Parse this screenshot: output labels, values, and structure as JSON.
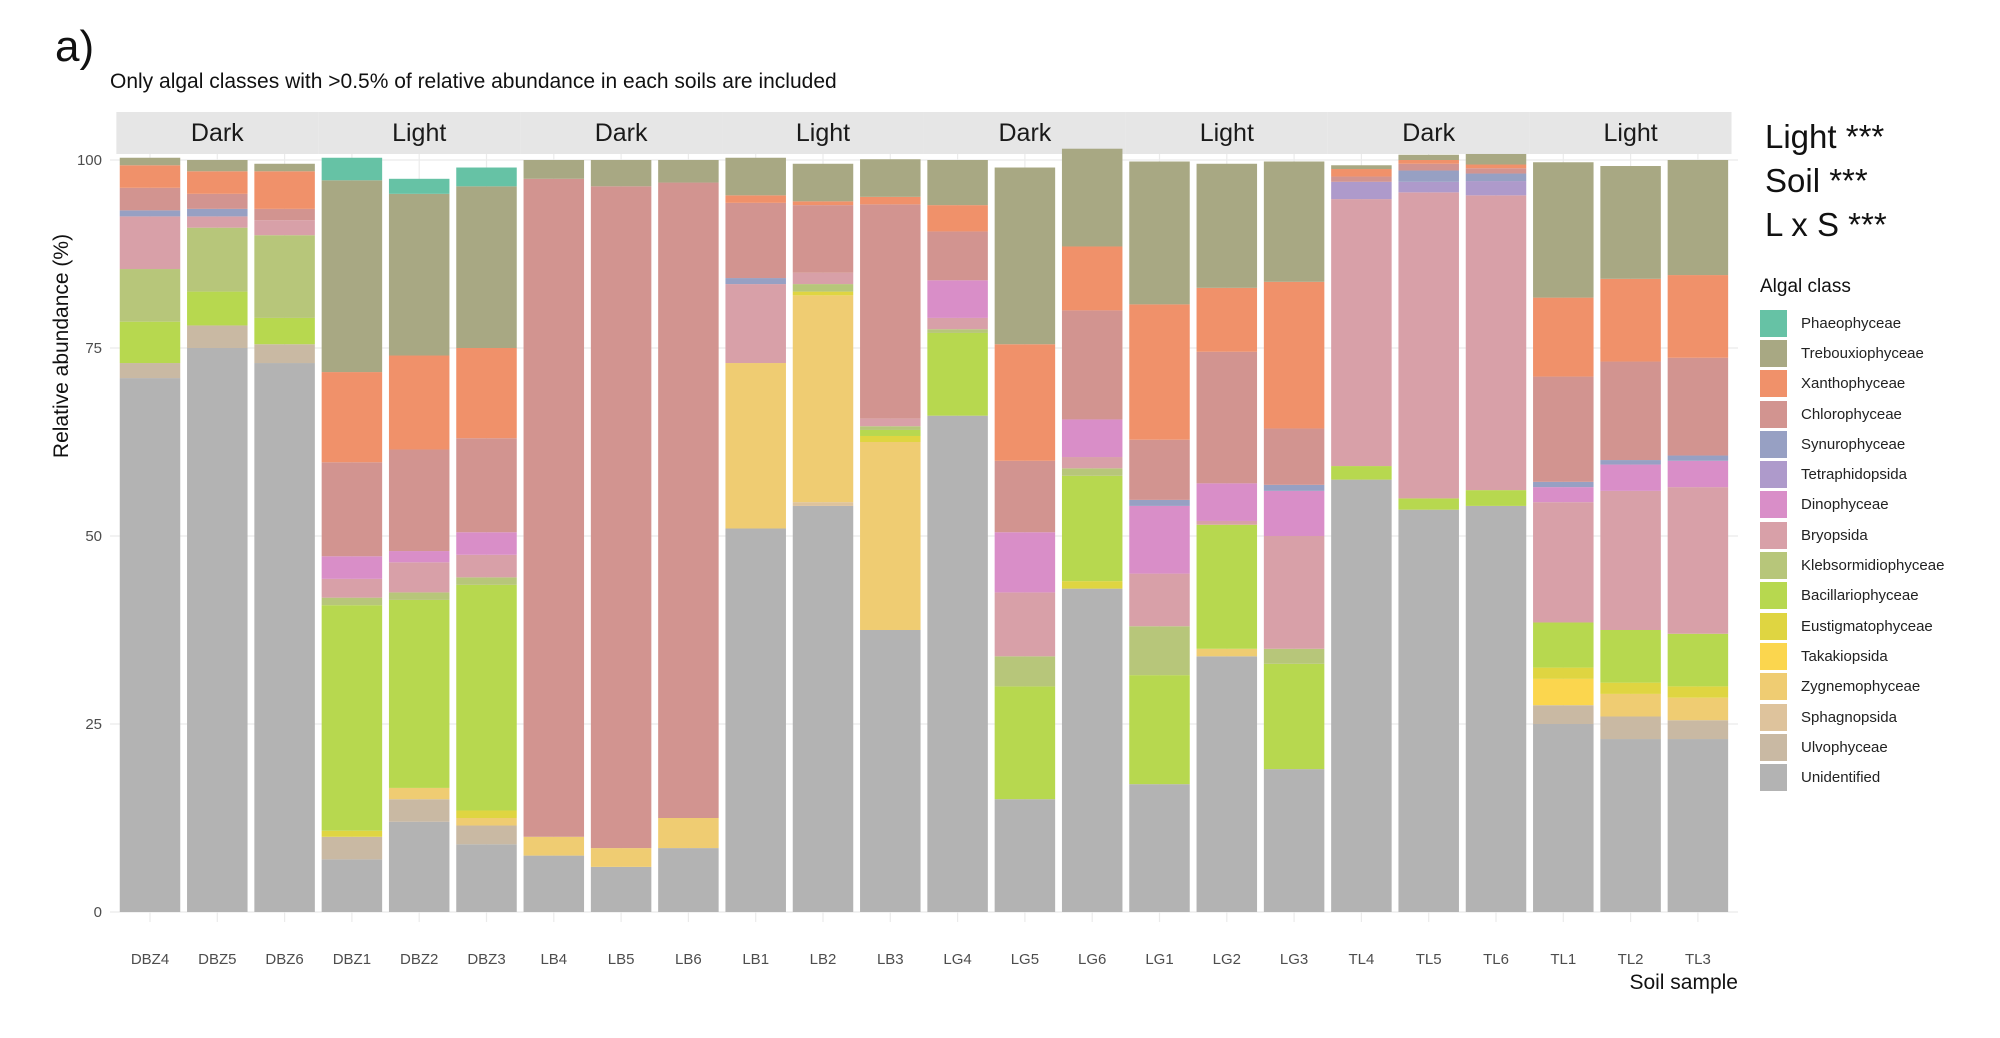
{
  "figure": {
    "panel_label": "a)",
    "subtitle": "Only algal classes with >0.5% of relative abundance in each soils are included",
    "stats": [
      "Light ***",
      "Soil ***",
      "L x S ***"
    ],
    "legend_title": "Algal class"
  },
  "chart_data": {
    "type": "bar",
    "stacked": true,
    "xlabel": "Soil sample",
    "ylabel": "Relative abundance (%)",
    "ylim": [
      0,
      100
    ],
    "yticks": [
      0,
      25,
      50,
      75,
      100
    ],
    "grid": true,
    "legend_position": "right",
    "categories": [
      "DBZ4",
      "DBZ5",
      "DBZ6",
      "DBZ1",
      "DBZ2",
      "DBZ3",
      "LB4",
      "LB5",
      "LB6",
      "LB1",
      "LB2",
      "LB3",
      "LG4",
      "LG5",
      "LG6",
      "LG1",
      "LG2",
      "LG3",
      "TL4",
      "TL5",
      "TL6",
      "TL1",
      "TL2",
      "TL3"
    ],
    "facet_strips": [
      {
        "label": "Dark",
        "categories": [
          "DBZ4",
          "DBZ5",
          "DBZ6"
        ]
      },
      {
        "label": "Light",
        "categories": [
          "DBZ1",
          "DBZ2",
          "DBZ3"
        ]
      },
      {
        "label": "Dark",
        "categories": [
          "LB4",
          "LB5",
          "LB6"
        ]
      },
      {
        "label": "Light",
        "categories": [
          "LB1",
          "LB2",
          "LB3"
        ]
      },
      {
        "label": "Dark",
        "categories": [
          "LG4",
          "LG5",
          "LG6"
        ]
      },
      {
        "label": "Light",
        "categories": [
          "LG1",
          "LG2",
          "LG3"
        ]
      },
      {
        "label": "Dark",
        "categories": [
          "TL4",
          "TL5",
          "TL6"
        ]
      },
      {
        "label": "Light",
        "categories": [
          "TL1",
          "TL2",
          "TL3"
        ]
      }
    ],
    "series": [
      {
        "name": "Phaeophyceae",
        "color": "#66c2a5",
        "values": [
          0,
          0,
          0,
          3,
          2,
          2.5,
          0,
          0,
          0,
          0,
          0,
          0,
          0,
          0,
          0,
          0,
          0,
          0,
          0,
          0,
          0,
          0,
          0,
          0
        ]
      },
      {
        "name": "Trebouxiophyceae",
        "color": "#a8a883",
        "values": [
          1,
          1.5,
          1,
          25.5,
          21.5,
          21.5,
          2.5,
          3.5,
          3,
          5,
          5,
          5,
          6,
          23.5,
          13,
          19,
          16.5,
          16,
          0.5,
          0.7,
          1.4,
          18,
          15,
          15.3
        ]
      },
      {
        "name": "Xanthophyceae",
        "color": "#f0916a",
        "values": [
          3,
          3,
          5,
          12,
          12.5,
          12,
          0,
          0,
          0,
          1,
          0.5,
          1,
          3.5,
          15.5,
          8.5,
          18,
          8.5,
          19.5,
          1,
          0.5,
          0.5,
          10.5,
          11,
          11
        ]
      },
      {
        "name": "Chlorophyceae",
        "color": "#d29490",
        "values": [
          3,
          2,
          1.5,
          12.5,
          13.5,
          12.5,
          87.5,
          88,
          84.5,
          10,
          9,
          28.5,
          6.5,
          9.5,
          14.5,
          8,
          17.5,
          7.5,
          0.7,
          0.9,
          0.7,
          14,
          13.1,
          13
        ]
      },
      {
        "name": "Synurophyceae",
        "color": "#97a0c3",
        "values": [
          0.8,
          1,
          0,
          0,
          0,
          0,
          0,
          0,
          0,
          0.8,
          0,
          0,
          0,
          0,
          0,
          0.8,
          0,
          0.8,
          0,
          1.5,
          1,
          0.7,
          0.6,
          0.7
        ]
      },
      {
        "name": "Tetraphidopsida",
        "color": "#ae9acb",
        "values": [
          0,
          0,
          0,
          0,
          0,
          0,
          0,
          0,
          0,
          0,
          0,
          0,
          0,
          0,
          0,
          0,
          0,
          0,
          2.3,
          1.4,
          1.9,
          0,
          0,
          0
        ]
      },
      {
        "name": "Dinophyceae",
        "color": "#d98ec8",
        "values": [
          0,
          0,
          0,
          3,
          1.5,
          3,
          0,
          0,
          0,
          0,
          0,
          0,
          5,
          8,
          5,
          9,
          5,
          6,
          0,
          0,
          0,
          2,
          3.5,
          3.5
        ]
      },
      {
        "name": "Bryopsida",
        "color": "#d8a0a8",
        "values": [
          7,
          1.5,
          2,
          2.5,
          4,
          3,
          0,
          0,
          0,
          10.5,
          1.5,
          1,
          1.5,
          8.5,
          1.5,
          7,
          0.5,
          15,
          35.5,
          40.7,
          39.2,
          16,
          18.5,
          19.5
        ]
      },
      {
        "name": "Klebsormidiophyceae",
        "color": "#b7c67a",
        "values": [
          7,
          8.5,
          11,
          1,
          1,
          1,
          0,
          0,
          0,
          0,
          1,
          0.5,
          0.5,
          4,
          1,
          6.5,
          0,
          2,
          0,
          0,
          0,
          0,
          0,
          0
        ]
      },
      {
        "name": "Bacillariophyceae",
        "color": "#b7d84f",
        "values": [
          5.5,
          4.5,
          3.5,
          30,
          25,
          30,
          0,
          0,
          0,
          0,
          0,
          0.8,
          11,
          15,
          14,
          14.5,
          16.5,
          14,
          1.8,
          1.5,
          2.1,
          6,
          7,
          7
        ]
      },
      {
        "name": "Eustigmatophyceae",
        "color": "#dfd541",
        "values": [
          0,
          0,
          0,
          0.8,
          0,
          1,
          0,
          0,
          0,
          0,
          0.5,
          0.8,
          0,
          0,
          1,
          0,
          0,
          0,
          0,
          0,
          0,
          1.5,
          1.5,
          1.5
        ]
      },
      {
        "name": "Takakiopsida",
        "color": "#fbd64e",
        "values": [
          0,
          0,
          0,
          0,
          0,
          0,
          0,
          0,
          0,
          0,
          0,
          0,
          0,
          0,
          0,
          0,
          0,
          0,
          0,
          0,
          0,
          3.5,
          0,
          0
        ]
      },
      {
        "name": "Zygnemophyceae",
        "color": "#efcc72",
        "values": [
          0,
          0,
          0,
          0,
          1.5,
          1,
          2.5,
          2.5,
          4,
          22,
          27.5,
          25,
          0,
          0,
          0,
          0,
          1,
          0,
          0,
          0,
          0,
          0,
          3,
          3
        ]
      },
      {
        "name": "Sphagnopsida",
        "color": "#dec39c",
        "values": [
          0,
          0,
          0,
          0,
          0,
          0,
          0,
          0,
          0,
          0,
          0.5,
          0,
          0,
          0,
          0,
          0,
          0,
          0,
          0,
          0,
          0,
          0,
          0,
          0
        ]
      },
      {
        "name": "Ulvophyceae",
        "color": "#c9b9a3",
        "values": [
          2,
          3,
          2.5,
          3,
          3,
          2.5,
          0,
          0,
          0,
          0,
          0,
          0,
          0,
          0,
          0,
          0,
          0,
          0,
          0,
          0,
          0,
          2.5,
          3,
          2.5
        ]
      },
      {
        "name": "Unidentified",
        "color": "#b3b3b3",
        "values": [
          71,
          75,
          73,
          7,
          12,
          9,
          7.5,
          6,
          8.5,
          51,
          54,
          37.5,
          66,
          15,
          43,
          17,
          34,
          19,
          57.5,
          53.5,
          54,
          25,
          23,
          23
        ]
      }
    ]
  }
}
